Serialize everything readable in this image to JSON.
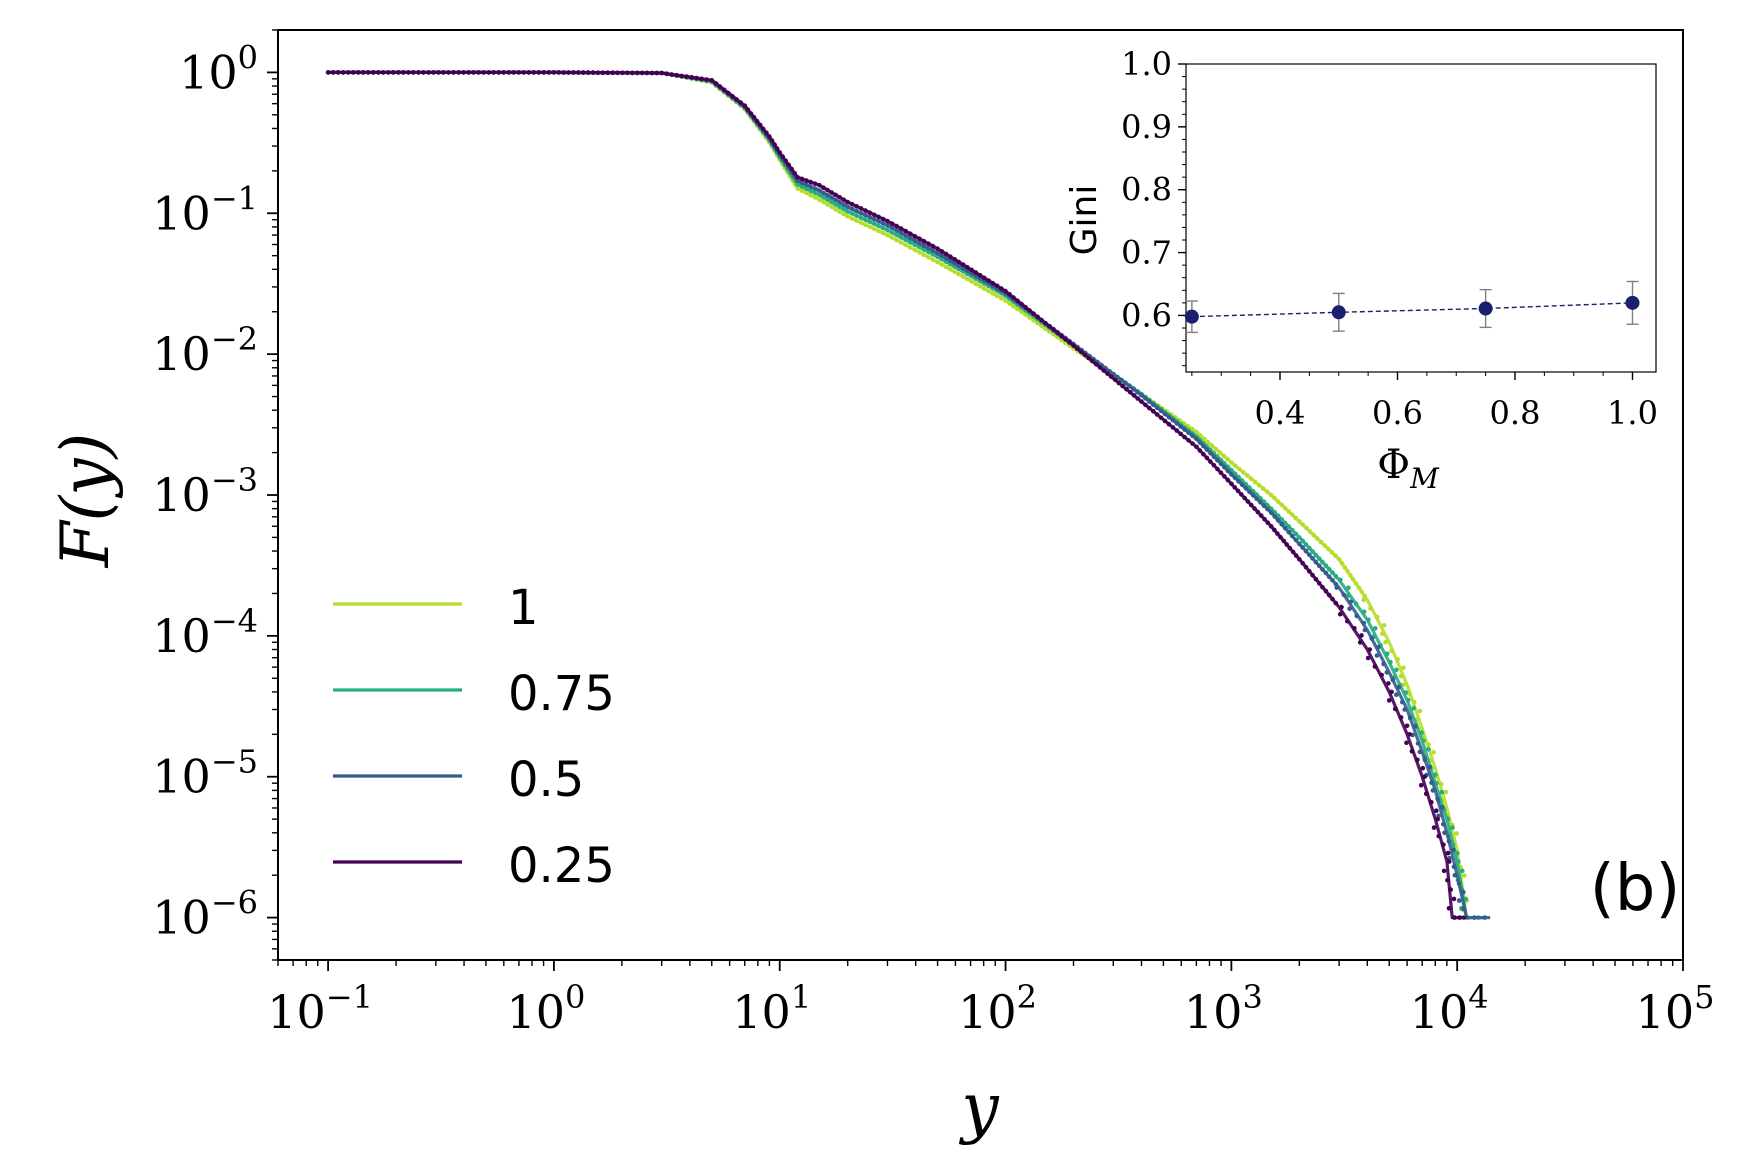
{
  "chart_data": [
    {
      "type": "scatter",
      "scale": {
        "x": "log",
        "y": "log"
      },
      "xlabel": "y",
      "ylabel": "F(y)",
      "xlim": [
        0.06,
        100000
      ],
      "ylim": [
        5e-07,
        2
      ],
      "xticks": [
        {
          "value": 0.1,
          "base": "10",
          "exp": "−1"
        },
        {
          "value": 1,
          "base": "10",
          "exp": "0"
        },
        {
          "value": 10,
          "base": "10",
          "exp": "1"
        },
        {
          "value": 100,
          "base": "10",
          "exp": "2"
        },
        {
          "value": 1000,
          "base": "10",
          "exp": "3"
        },
        {
          "value": 10000,
          "base": "10",
          "exp": "4"
        },
        {
          "value": 100000,
          "base": "10",
          "exp": "5"
        }
      ],
      "yticks": [
        {
          "value": 1,
          "base": "10",
          "exp": "0"
        },
        {
          "value": 0.1,
          "base": "10",
          "exp": "−1"
        },
        {
          "value": 0.01,
          "base": "10",
          "exp": "−2"
        },
        {
          "value": 0.001,
          "base": "10",
          "exp": "−3"
        },
        {
          "value": 0.0001,
          "base": "10",
          "exp": "−4"
        },
        {
          "value": 1e-05,
          "base": "10",
          "exp": "−5"
        },
        {
          "value": 1e-06,
          "base": "10",
          "exp": "−6"
        }
      ],
      "legend": {
        "placement": "lower-left",
        "entries": [
          "1",
          "0.75",
          "0.5",
          "0.25"
        ]
      },
      "annotation": "(b)",
      "series": [
        {
          "name": "1",
          "color": "#b5de2b",
          "points": [
            [
              0.1,
              1
            ],
            [
              1,
              1
            ],
            [
              3,
              0.99
            ],
            [
              5,
              0.85
            ],
            [
              7,
              0.55
            ],
            [
              9,
              0.32
            ],
            [
              10,
              0.24
            ],
            [
              12,
              0.15
            ],
            [
              15,
              0.125
            ],
            [
              20,
              0.095
            ],
            [
              30,
              0.07
            ],
            [
              50,
              0.045
            ],
            [
              100,
              0.024
            ],
            [
              200,
              0.011
            ],
            [
              400,
              0.0052
            ],
            [
              700,
              0.0028
            ],
            [
              1000,
              0.0017
            ],
            [
              1500,
              0.001
            ],
            [
              2000,
              0.00065
            ],
            [
              3000,
              0.00035
            ],
            [
              4000,
              0.00018
            ],
            [
              5000,
              9e-05
            ],
            [
              6000,
              4.5e-05
            ],
            [
              7000,
              2.2e-05
            ],
            [
              8000,
              1.15e-05
            ],
            [
              9000,
              6e-06
            ],
            [
              10000,
              3e-06
            ],
            [
              11000,
              1e-06
            ],
            [
              12000,
              1e-06
            ]
          ]
        },
        {
          "name": "0.75",
          "color": "#26ad81",
          "points": [
            [
              0.1,
              1
            ],
            [
              1,
              1
            ],
            [
              3,
              0.99
            ],
            [
              5,
              0.86
            ],
            [
              7,
              0.56
            ],
            [
              9,
              0.33
            ],
            [
              10,
              0.25
            ],
            [
              12,
              0.16
            ],
            [
              15,
              0.135
            ],
            [
              20,
              0.103
            ],
            [
              30,
              0.076
            ],
            [
              50,
              0.049
            ],
            [
              100,
              0.026
            ],
            [
              200,
              0.0115
            ],
            [
              400,
              0.0052
            ],
            [
              700,
              0.0026
            ],
            [
              1000,
              0.0015
            ],
            [
              1500,
              0.0008
            ],
            [
              2000,
              0.0005
            ],
            [
              3000,
              0.00025
            ],
            [
              4000,
              0.00013
            ],
            [
              5000,
              6.5e-05
            ],
            [
              6000,
              3.5e-05
            ],
            [
              7000,
              1.8e-05
            ],
            [
              8000,
              9e-06
            ],
            [
              9000,
              5e-06
            ],
            [
              10000,
              2.5e-06
            ],
            [
              11000,
              1e-06
            ],
            [
              13000,
              1e-06
            ]
          ]
        },
        {
          "name": "0.5",
          "color": "#365c8d",
          "points": [
            [
              0.1,
              1
            ],
            [
              1,
              1
            ],
            [
              3,
              0.99
            ],
            [
              5,
              0.87
            ],
            [
              7,
              0.57
            ],
            [
              9,
              0.34
            ],
            [
              10,
              0.26
            ],
            [
              12,
              0.17
            ],
            [
              15,
              0.145
            ],
            [
              20,
              0.111
            ],
            [
              30,
              0.082
            ],
            [
              50,
              0.052
            ],
            [
              100,
              0.027
            ],
            [
              200,
              0.0118
            ],
            [
              400,
              0.0051
            ],
            [
              700,
              0.0025
            ],
            [
              1000,
              0.0014
            ],
            [
              1500,
              0.00075
            ],
            [
              2000,
              0.00045
            ],
            [
              3000,
              0.00022
            ],
            [
              4000,
              0.00011
            ],
            [
              5000,
              5.5e-05
            ],
            [
              6000,
              3e-05
            ],
            [
              7000,
              1.5e-05
            ],
            [
              8000,
              8e-06
            ],
            [
              9000,
              4e-06
            ],
            [
              10000,
              2e-06
            ],
            [
              11000,
              1e-06
            ],
            [
              14000,
              1e-06
            ]
          ]
        },
        {
          "name": "0.25",
          "color": "#440154",
          "points": [
            [
              0.1,
              1
            ],
            [
              1,
              1
            ],
            [
              3,
              0.99
            ],
            [
              5,
              0.88
            ],
            [
              7,
              0.58
            ],
            [
              9,
              0.35
            ],
            [
              10,
              0.27
            ],
            [
              12,
              0.18
            ],
            [
              15,
              0.158
            ],
            [
              20,
              0.12
            ],
            [
              30,
              0.088
            ],
            [
              50,
              0.056
            ],
            [
              100,
              0.028
            ],
            [
              200,
              0.0115
            ],
            [
              400,
              0.0046
            ],
            [
              700,
              0.0022
            ],
            [
              1000,
              0.0012
            ],
            [
              1500,
              0.0006
            ],
            [
              2000,
              0.00035
            ],
            [
              3000,
              0.00016
            ],
            [
              4000,
              8e-05
            ],
            [
              5000,
              4e-05
            ],
            [
              6000,
              2e-05
            ],
            [
              7000,
              1e-05
            ],
            [
              8000,
              5e-06
            ],
            [
              9000,
              2.5e-06
            ],
            [
              9500,
              1e-06
            ],
            [
              10000,
              1e-06
            ],
            [
              11000,
              1e-06
            ]
          ]
        }
      ]
    },
    {
      "type": "scatter",
      "subtype": "errorbar",
      "xlabel": "Φ",
      "xlabel_sub": "M",
      "ylabel": "Gini",
      "xlim": [
        0.24,
        1.04
      ],
      "ylim": [
        0.51,
        1.0
      ],
      "xticks": [
        "0.4",
        "0.6",
        "0.8",
        "1.0"
      ],
      "yticks": [
        "0.6",
        "0.7",
        "0.8",
        "0.9",
        "1.0"
      ],
      "color": "#1a1f6e",
      "errorbar_color": "#808080",
      "points": [
        {
          "x": 0.25,
          "y": 0.598,
          "err": 0.025
        },
        {
          "x": 0.5,
          "y": 0.605,
          "err": 0.03
        },
        {
          "x": 0.75,
          "y": 0.611,
          "err": 0.03
        },
        {
          "x": 1.0,
          "y": 0.62,
          "err": 0.034
        }
      ]
    }
  ]
}
